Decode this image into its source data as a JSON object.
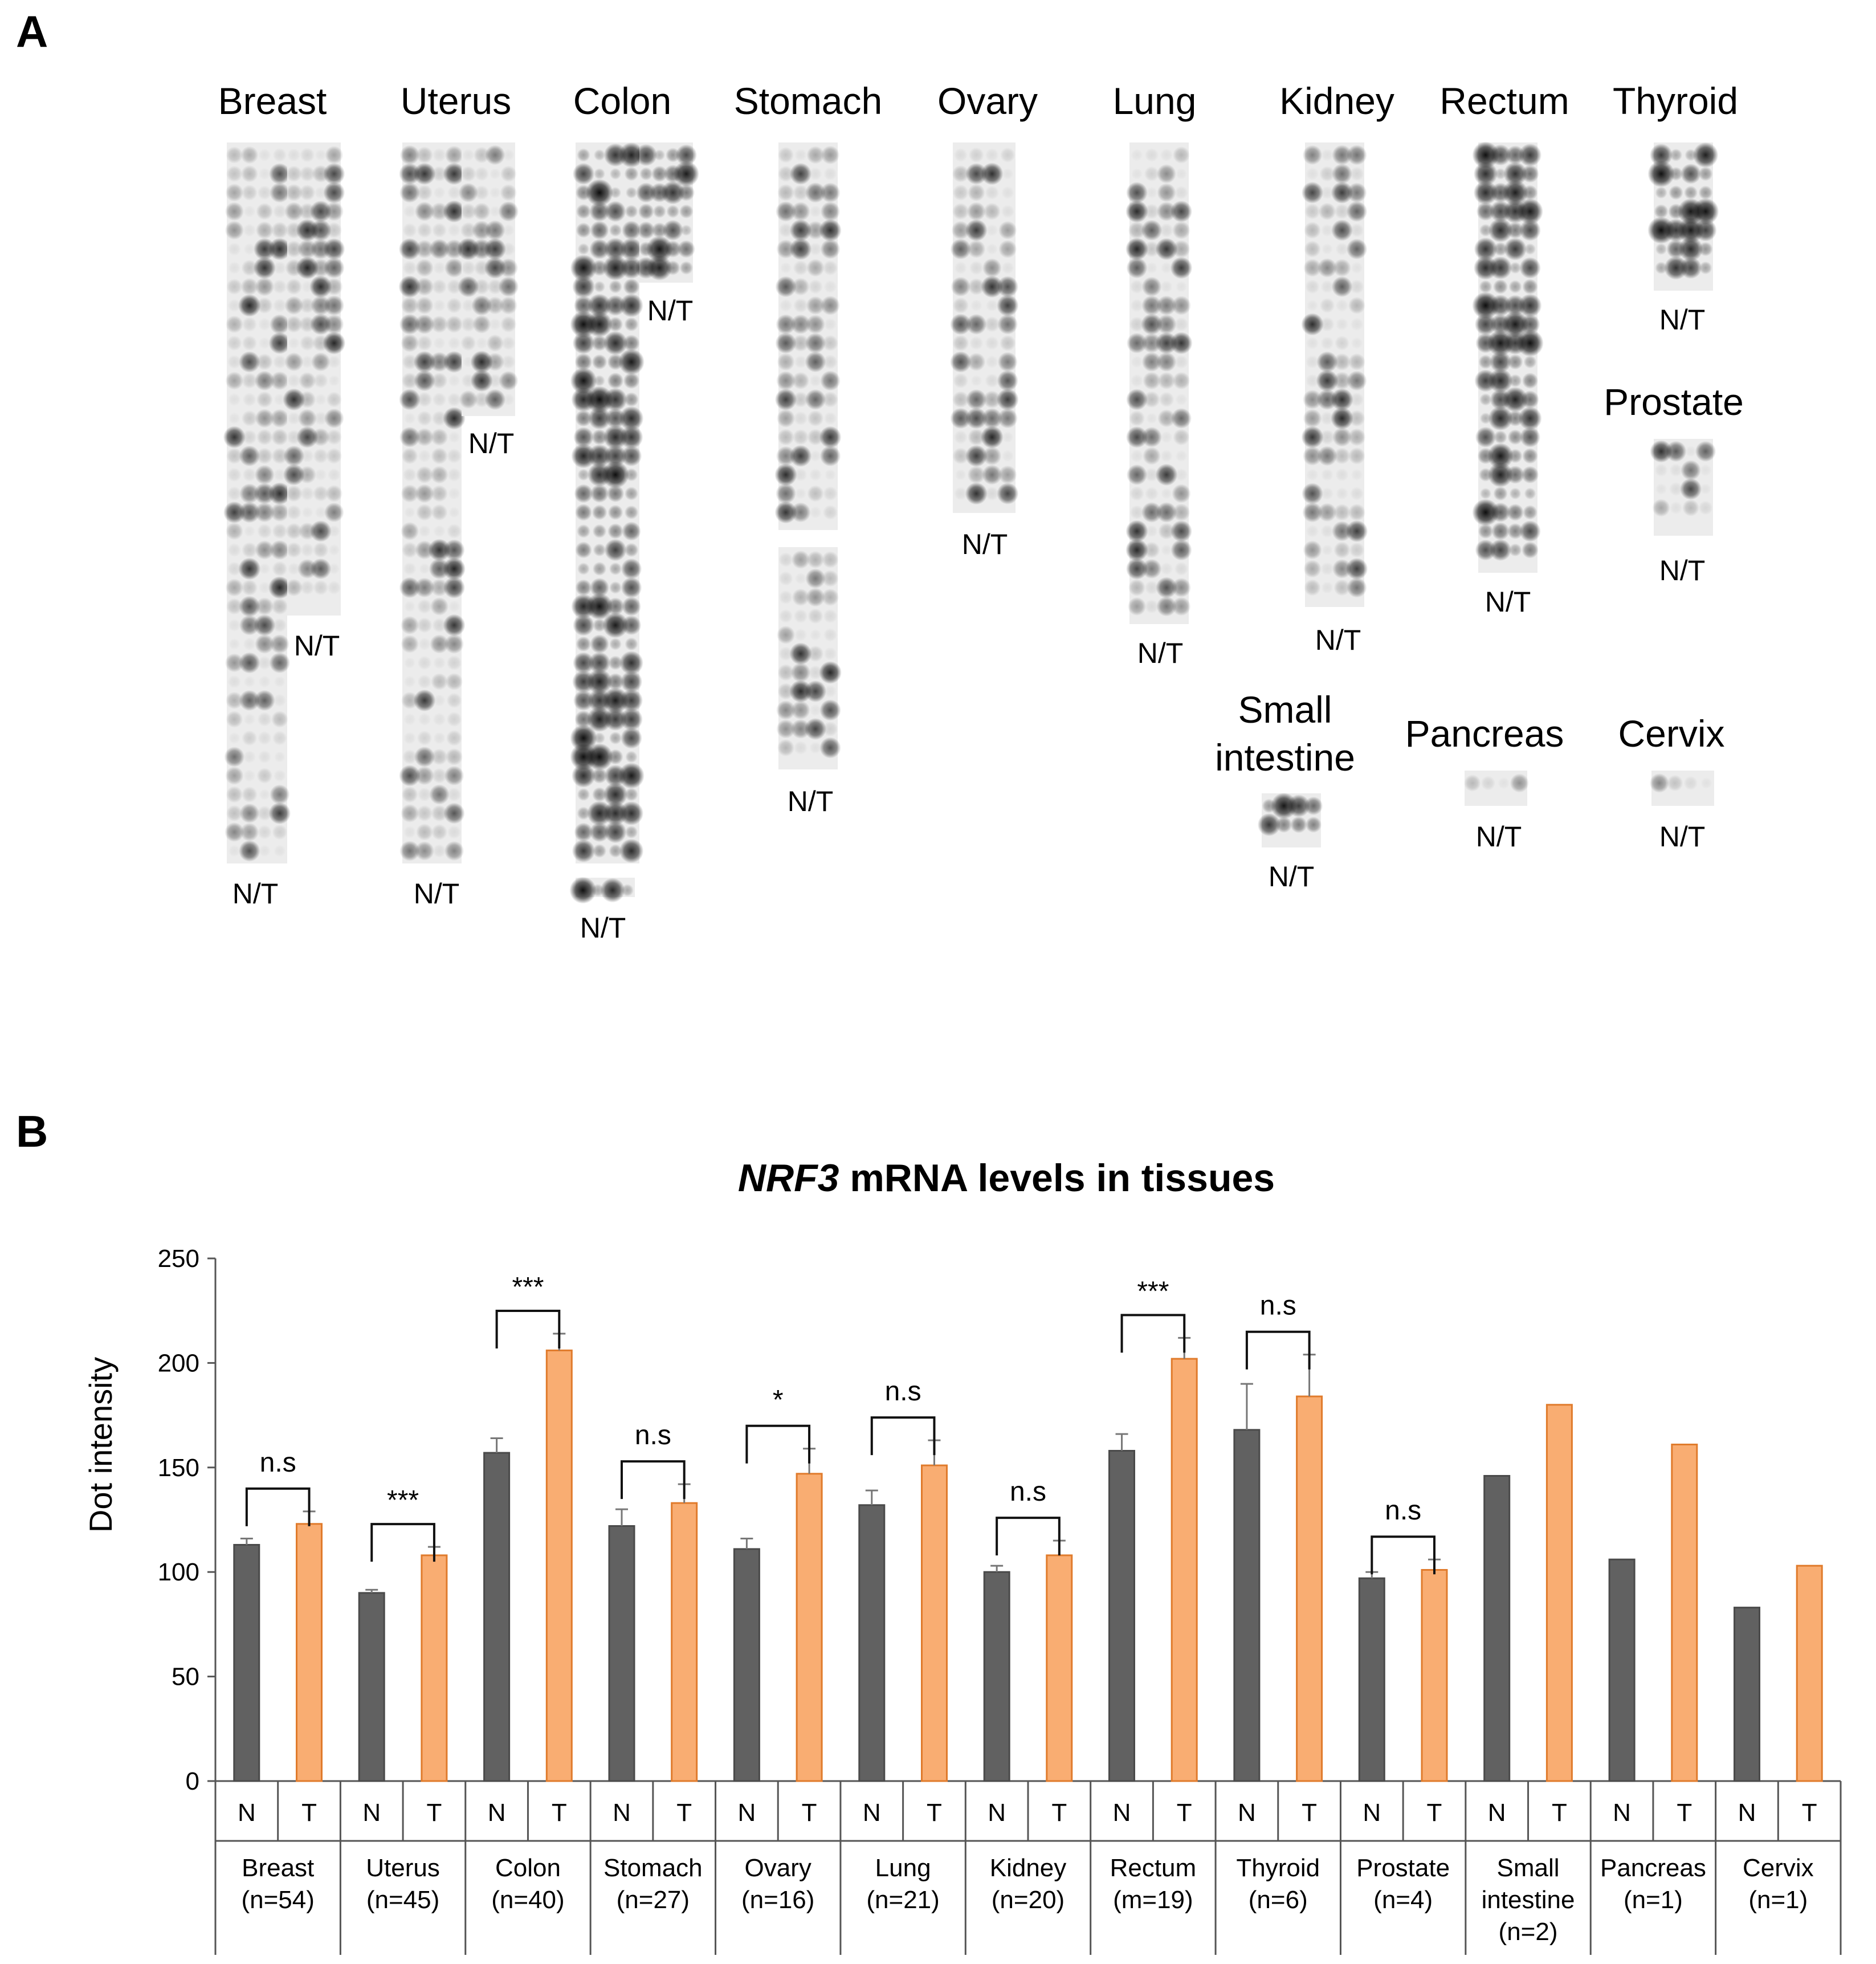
{
  "panel_a": {
    "letter": "A",
    "nt_label": "N/T",
    "tissues": [
      "Breast",
      "Uterus",
      "Colon",
      "Stomach",
      "Ovary",
      "Lung",
      "Kidney",
      "Rectum",
      "Thyroid",
      "Prostate",
      "Small intestine",
      "Pancreas",
      "Cervix"
    ]
  },
  "panel_b": {
    "letter": "B"
  },
  "chart_data": {
    "type": "bar",
    "title_italic": "NRF3",
    "title_rest": " mRNA levels in tissues",
    "ylabel": "Dot intensity",
    "xlabel": "",
    "ylim": [
      0,
      250
    ],
    "yticks": [
      0,
      50,
      100,
      150,
      200,
      250
    ],
    "grid": false,
    "colors": {
      "N": "#616161",
      "T": "#f9ad72",
      "edge": "#4a4a4a",
      "T_edge": "#e07b2c"
    },
    "group_labels": [
      "N",
      "T"
    ],
    "categories": [
      {
        "name": [
          "Breast",
          "(n=54)"
        ]
      },
      {
        "name": [
          "Uterus",
          "(n=45)"
        ]
      },
      {
        "name": [
          "Colon",
          "(n=40)"
        ]
      },
      {
        "name": [
          "Stomach",
          "(n=27)"
        ]
      },
      {
        "name": [
          "Ovary",
          "(n=16)"
        ]
      },
      {
        "name": [
          "Lung",
          "(n=21)"
        ]
      },
      {
        "name": [
          "Kidney",
          "(n=20)"
        ]
      },
      {
        "name": [
          "Rectum",
          "(m=19)"
        ]
      },
      {
        "name": [
          "Thyroid",
          "(n=6)"
        ]
      },
      {
        "name": [
          "Prostate",
          "(n=4)"
        ]
      },
      {
        "name": [
          "Small",
          "intestine",
          "(n=2)"
        ]
      },
      {
        "name": [
          "Pancreas",
          "(n=1)"
        ]
      },
      {
        "name": [
          "Cervix",
          "(n=1)"
        ]
      }
    ],
    "series": [
      {
        "name": "N",
        "values": [
          113,
          90,
          157,
          122,
          111,
          132,
          100,
          158,
          168,
          97,
          146,
          106,
          83
        ],
        "errors": [
          3,
          1.5,
          7,
          8,
          5,
          7,
          3,
          8,
          22,
          3,
          0,
          0,
          0
        ]
      },
      {
        "name": "T",
        "values": [
          123,
          108,
          206,
          133,
          147,
          151,
          108,
          202,
          184,
          101,
          180,
          161,
          103
        ],
        "errors": [
          6,
          4,
          8,
          9,
          12,
          12,
          7,
          10,
          20,
          5,
          0,
          0,
          0
        ]
      }
    ],
    "significance": [
      "n.s",
      "***",
      "***",
      "n.s",
      "*",
      "n.s",
      "n.s",
      "***",
      "n.s",
      "n.s",
      null,
      null,
      null
    ]
  }
}
